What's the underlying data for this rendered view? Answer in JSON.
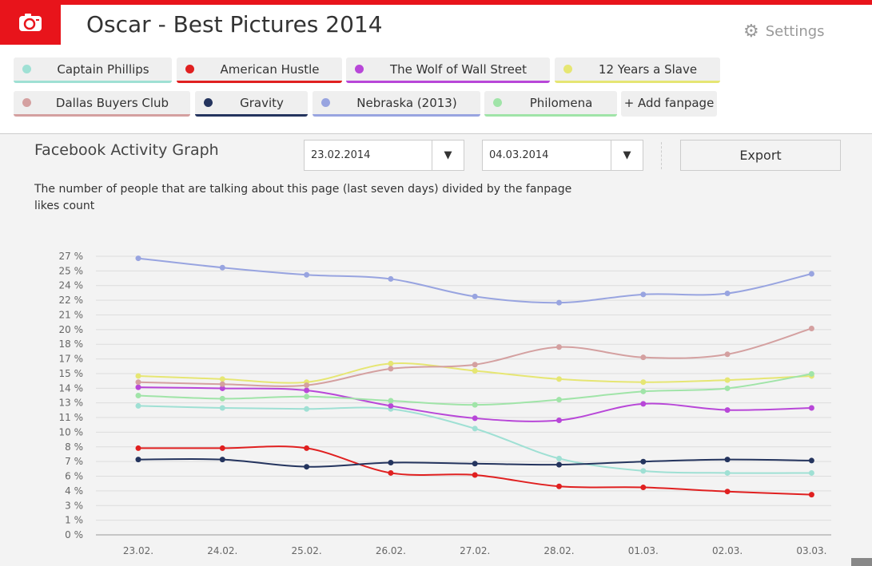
{
  "header": {
    "title": "Oscar - Best Pictures 2014",
    "settings_label": "Settings",
    "logo_icon": "camera-icon",
    "settings_icon": "gear-icon",
    "brand_color": "#e8141b"
  },
  "fanpages": [
    {
      "label": "Captain Phillips",
      "color": "#9fe0d4"
    },
    {
      "label": "American Hustle",
      "color": "#e02020"
    },
    {
      "label": "The Wolf of Wall Street",
      "color": "#b847d8"
    },
    {
      "label": "12 Years a Slave",
      "color": "#e6e673"
    },
    {
      "label": "Dallas Buyers Club",
      "color": "#d4a0a0"
    },
    {
      "label": "Gravity",
      "color": "#24345e"
    },
    {
      "label": "Nebraska (2013)",
      "color": "#98a4e0"
    },
    {
      "label": "Philomena",
      "color": "#a0e4a8"
    }
  ],
  "add_fanpage_label": "+ Add fanpage",
  "graph": {
    "title": "Facebook Activity Graph",
    "description": "The number of people that are talking about this page (last seven days) divided by the fanpage likes count",
    "date_from": "23.02.2014",
    "date_to": "04.03.2014",
    "export_label": "Export"
  },
  "chart_data": {
    "type": "line",
    "x": [
      "23.02.",
      "24.02.",
      "25.02.",
      "26.02.",
      "27.02.",
      "28.02.",
      "01.03.",
      "02.03.",
      "03.03."
    ],
    "yticks": [
      "0 %",
      "1 %",
      "3 %",
      "4 %",
      "6 %",
      "7 %",
      "8 %",
      "10 %",
      "11 %",
      "13 %",
      "14 %",
      "15 %",
      "17 %",
      "18 %",
      "20 %",
      "21 %",
      "22 %",
      "24 %",
      "25 %",
      "27 %"
    ],
    "ylim": [
      0,
      27
    ],
    "grid": true,
    "series": [
      {
        "name": "Captain Phillips",
        "color": "#9fe0d4",
        "values": [
          12.5,
          12.3,
          12.2,
          12.2,
          10.3,
          7.4,
          6.2,
          6.0,
          6.0
        ]
      },
      {
        "name": "American Hustle",
        "color": "#e02020",
        "values": [
          8.4,
          8.4,
          8.4,
          6.0,
          5.8,
          4.7,
          4.6,
          4.2,
          3.9
        ]
      },
      {
        "name": "The Wolf of Wall Street",
        "color": "#b847d8",
        "values": [
          14.3,
          14.2,
          14.0,
          12.5,
          11.3,
          11.1,
          12.7,
          12.1,
          12.3
        ]
      },
      {
        "name": "12 Years a Slave",
        "color": "#e6e673",
        "values": [
          15.4,
          15.1,
          14.8,
          16.6,
          15.9,
          15.1,
          14.8,
          15.0,
          15.4
        ]
      },
      {
        "name": "Dallas Buyers Club",
        "color": "#d4a0a0",
        "values": [
          14.8,
          14.6,
          14.5,
          16.1,
          16.5,
          18.2,
          17.2,
          17.5,
          20.0
        ]
      },
      {
        "name": "Gravity",
        "color": "#24345e",
        "values": [
          7.3,
          7.3,
          6.6,
          7.0,
          6.9,
          6.8,
          7.1,
          7.3,
          7.2
        ]
      },
      {
        "name": "Nebraska (2013)",
        "color": "#98a4e0",
        "values": [
          26.8,
          25.9,
          25.2,
          24.8,
          23.1,
          22.5,
          23.3,
          23.4,
          25.3
        ]
      },
      {
        "name": "Philomena",
        "color": "#a0e4a8",
        "values": [
          13.5,
          13.2,
          13.4,
          13.0,
          12.6,
          13.1,
          13.9,
          14.2,
          15.6
        ]
      }
    ]
  }
}
